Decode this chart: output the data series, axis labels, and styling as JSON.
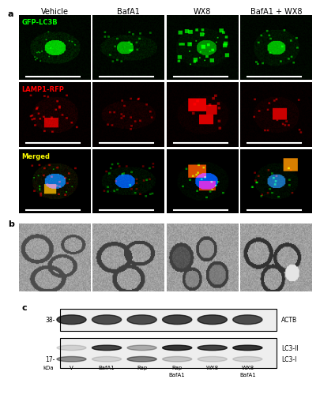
{
  "panel_a_label": "a",
  "panel_b_label": "b",
  "panel_c_label": "c",
  "col_headers": [
    "Vehicle",
    "BafA1",
    "WX8",
    "BafA1 + WX8"
  ],
  "row_labels": [
    "GFP-LC3B",
    "LAMP1-RFP",
    "Merged"
  ],
  "row_label_colors": [
    "#00ff00",
    "#ff0000",
    "#ffff00"
  ],
  "western_col_headers_top": [
    "",
    "",
    "",
    "BafA1",
    "",
    "BafA1"
  ],
  "western_col_headers_bot": [
    "kDa",
    "V",
    "BafA1",
    "Rap",
    "Rap",
    "WX8",
    "WX8"
  ],
  "western_marker_17": "17",
  "western_marker_38": "38",
  "western_band_labels": [
    "LC3-I",
    "LC3-II",
    "ACTB"
  ],
  "background_color": "#ffffff",
  "fig_width": 3.79,
  "fig_height": 5.0,
  "header_fontsize": 7,
  "row_label_fontsize": 6,
  "western_fontsize": 6
}
